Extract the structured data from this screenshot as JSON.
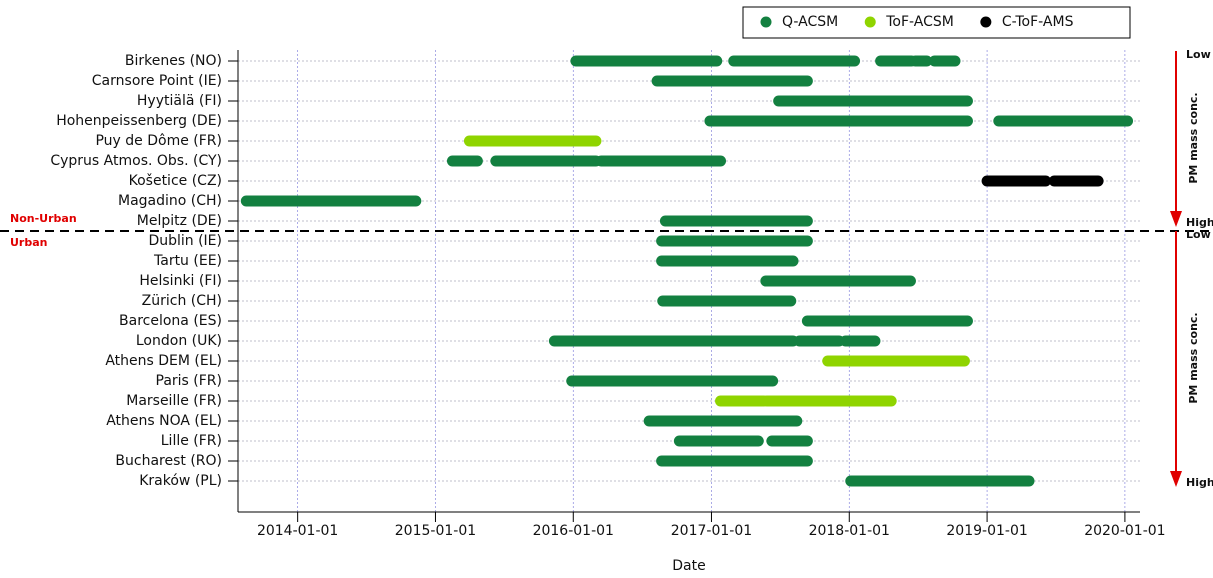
{
  "chart_data": {
    "type": "timeline",
    "xlabel": "Date",
    "xlim": [
      "2013-07-27",
      "2020-02-10"
    ],
    "xticks": [
      "2014-01-01",
      "2015-01-01",
      "2016-01-01",
      "2017-01-01",
      "2018-01-01",
      "2019-01-01",
      "2020-01-01"
    ],
    "grid": true,
    "legend": "top-right",
    "categories": [
      "Birkenes (NO)",
      "Carnsore Point (IE)",
      "Hyytiälä (FI)",
      "Hohenpeissenberg (DE)",
      "Puy de Dôme (FR)",
      "Cyprus Atmos. Obs. (CY)",
      "Košetice (CZ)",
      "Magadino (CH)",
      "Melpitz (DE)",
      "Dublin (IE)",
      "Tartu (EE)",
      "Helsinki (FI)",
      "Zürich (CH)",
      "Barcelona (ES)",
      "London (UK)",
      "Athens DEM (EL)",
      "Paris (FR)",
      "Marseille (FR)",
      "Athens NOA (EL)",
      "Lille (FR)",
      "Bucharest (RO)",
      "Kraków (PL)"
    ],
    "groups": [
      {
        "name": "Non-Urban",
        "first": "Birkenes (NO)",
        "last": "Melpitz (DE)",
        "arrow_top": "Low",
        "arrow_bottom": "High",
        "arrow_label": "PM mass conc."
      },
      {
        "name": "Urban",
        "first": "Dublin (IE)",
        "last": "Kraków (PL)",
        "arrow_top": "Low",
        "arrow_bottom": "High",
        "arrow_label": "PM mass conc."
      }
    ],
    "series": [
      {
        "name": "Q-ACSM",
        "color": "#138040",
        "periods": [
          {
            "category": "Birkenes (NO)",
            "start": "2016-01-08",
            "end": "2017-01-15"
          },
          {
            "category": "Birkenes (NO)",
            "start": "2017-03-01",
            "end": "2018-01-15"
          },
          {
            "category": "Birkenes (NO)",
            "start": "2018-03-25",
            "end": "2018-06-15"
          },
          {
            "category": "Birkenes (NO)",
            "start": "2018-06-25",
            "end": "2018-07-25"
          },
          {
            "category": "Birkenes (NO)",
            "start": "2018-08-15",
            "end": "2018-10-08"
          },
          {
            "category": "Carnsore Point (IE)",
            "start": "2016-08-10",
            "end": "2017-09-12"
          },
          {
            "category": "Hyytiälä (FI)",
            "start": "2017-06-28",
            "end": "2018-04-20"
          },
          {
            "category": "Hyytiälä (FI)",
            "start": "2018-04-20",
            "end": "2018-11-10"
          },
          {
            "category": "Hohenpeissenberg (DE)",
            "start": "2016-12-28",
            "end": "2017-10-20"
          },
          {
            "category": "Hohenpeissenberg (DE)",
            "start": "2017-10-20",
            "end": "2018-01-22"
          },
          {
            "category": "Hohenpeissenberg (DE)",
            "start": "2018-01-22",
            "end": "2018-11-10"
          },
          {
            "category": "Hohenpeissenberg (DE)",
            "start": "2019-02-01",
            "end": "2020-01-08"
          },
          {
            "category": "Cyprus Atmos. Obs. (CY)",
            "start": "2015-02-15",
            "end": "2015-04-22"
          },
          {
            "category": "Cyprus Atmos. Obs. (CY)",
            "start": "2015-06-10",
            "end": "2015-07-05"
          },
          {
            "category": "Cyprus Atmos. Obs. (CY)",
            "start": "2015-07-05",
            "end": "2016-03-01"
          },
          {
            "category": "Cyprus Atmos. Obs. (CY)",
            "start": "2016-03-15",
            "end": "2017-01-25"
          },
          {
            "category": "Magadino (CH)",
            "start": "2013-08-18",
            "end": "2014-11-10"
          },
          {
            "category": "Melpitz (DE)",
            "start": "2016-09-01",
            "end": "2017-09-12"
          },
          {
            "category": "Dublin (IE)",
            "start": "2016-08-22",
            "end": "2017-09-12"
          },
          {
            "category": "Tartu (EE)",
            "start": "2016-08-22",
            "end": "2017-08-05"
          },
          {
            "category": "Helsinki (FI)",
            "start": "2017-05-25",
            "end": "2018-06-12"
          },
          {
            "category": "Zürich (CH)",
            "start": "2016-08-25",
            "end": "2016-09-15"
          },
          {
            "category": "Zürich (CH)",
            "start": "2016-09-15",
            "end": "2017-07-30"
          },
          {
            "category": "Barcelona (ES)",
            "start": "2017-09-12",
            "end": "2018-03-15"
          },
          {
            "category": "Barcelona (ES)",
            "start": "2018-03-15",
            "end": "2018-08-15"
          },
          {
            "category": "Barcelona (ES)",
            "start": "2018-08-15",
            "end": "2018-11-10"
          },
          {
            "category": "London (UK)",
            "start": "2015-11-12",
            "end": "2016-06-18"
          },
          {
            "category": "London (UK)",
            "start": "2016-06-18",
            "end": "2016-12-25"
          },
          {
            "category": "London (UK)",
            "start": "2016-12-25",
            "end": "2017-08-05"
          },
          {
            "category": "London (UK)",
            "start": "2017-08-22",
            "end": "2017-12-05"
          },
          {
            "category": "London (UK)",
            "start": "2017-12-22",
            "end": "2018-03-10"
          },
          {
            "category": "Paris (FR)",
            "start": "2015-12-28",
            "end": "2016-08-10"
          },
          {
            "category": "Paris (FR)",
            "start": "2016-08-10",
            "end": "2017-06-12"
          },
          {
            "category": "Athens NOA (EL)",
            "start": "2016-07-20",
            "end": "2017-08-15"
          },
          {
            "category": "Lille (FR)",
            "start": "2016-10-08",
            "end": "2016-12-05"
          },
          {
            "category": "Lille (FR)",
            "start": "2016-12-05",
            "end": "2017-05-05"
          },
          {
            "category": "Lille (FR)",
            "start": "2017-06-10",
            "end": "2017-09-12"
          },
          {
            "category": "Bucharest (RO)",
            "start": "2016-08-22",
            "end": "2017-09-12"
          },
          {
            "category": "Kraków (PL)",
            "start": "2018-01-05",
            "end": "2018-05-22"
          },
          {
            "category": "Kraków (PL)",
            "start": "2018-05-22",
            "end": "2018-10-01"
          },
          {
            "category": "Kraków (PL)",
            "start": "2018-10-01",
            "end": "2019-04-22"
          }
        ]
      },
      {
        "name": "ToF-ACSM",
        "color": "#8fd400",
        "periods": [
          {
            "category": "Puy de Dôme (FR)",
            "start": "2015-04-01",
            "end": "2015-11-15"
          },
          {
            "category": "Puy de Dôme (FR)",
            "start": "2015-11-15",
            "end": "2016-03-01"
          },
          {
            "category": "Athens DEM (EL)",
            "start": "2017-11-05",
            "end": "2018-08-15"
          },
          {
            "category": "Athens DEM (EL)",
            "start": "2018-08-15",
            "end": "2018-11-02"
          },
          {
            "category": "Marseille (FR)",
            "start": "2017-01-25",
            "end": "2017-05-20"
          },
          {
            "category": "Marseille (FR)",
            "start": "2017-05-27",
            "end": "2018-02-15"
          },
          {
            "category": "Marseille (FR)",
            "start": "2018-02-15",
            "end": "2018-04-22"
          }
        ]
      },
      {
        "name": "C-ToF-AMS",
        "color": "#000000",
        "periods": [
          {
            "category": "Košetice (CZ)",
            "start": "2019-01-01",
            "end": "2019-06-05"
          },
          {
            "category": "Košetice (CZ)",
            "start": "2019-06-28",
            "end": "2019-10-22"
          }
        ]
      }
    ]
  }
}
